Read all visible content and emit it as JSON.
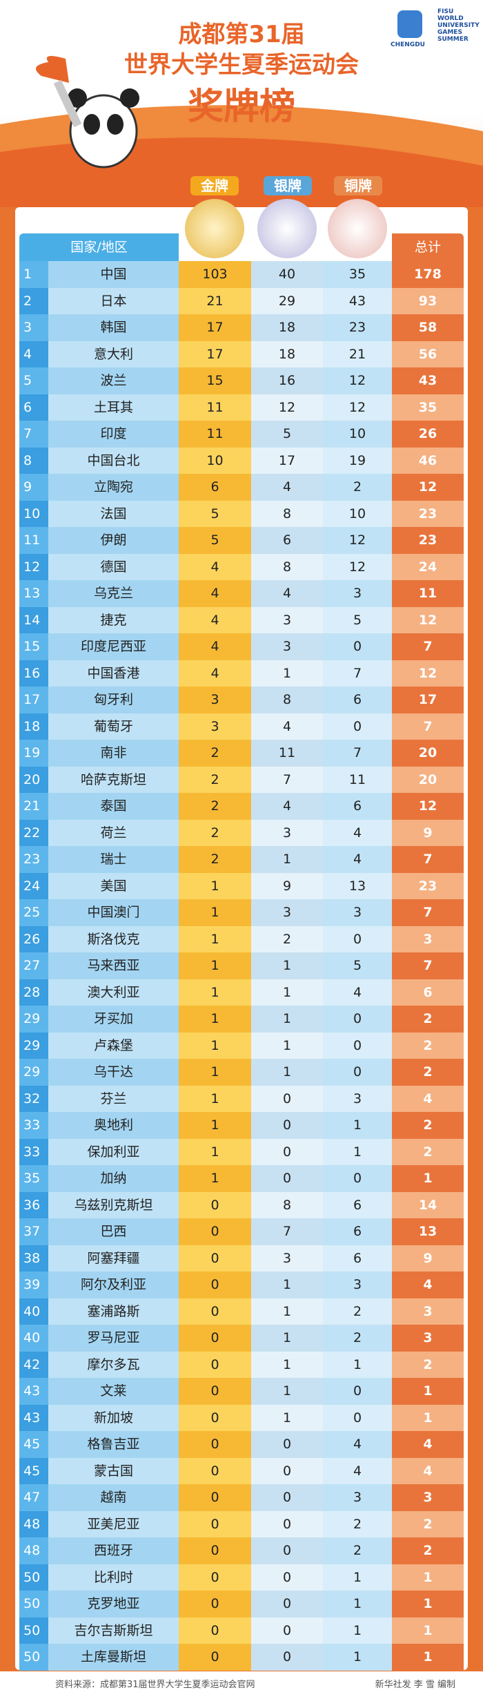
{
  "header": {
    "title_line1": "成都第31届",
    "title_line2": "世界大学生夏季运动会",
    "title_line3": "奖牌榜",
    "logo_left": "CHENGDU",
    "logo_right": [
      "FISU",
      "WORLD",
      "UNIVERSITY",
      "GAMES",
      "SUMMER"
    ]
  },
  "medals": {
    "gold": "金牌",
    "silver": "银牌",
    "bronze": "铜牌"
  },
  "table": {
    "columns": {
      "country": "国家/地区",
      "total": "总计"
    },
    "rows": [
      [
        1,
        "中国",
        103,
        40,
        35,
        178
      ],
      [
        2,
        "日本",
        21,
        29,
        43,
        93
      ],
      [
        3,
        "韩国",
        17,
        18,
        23,
        58
      ],
      [
        4,
        "意大利",
        17,
        18,
        21,
        56
      ],
      [
        5,
        "波兰",
        15,
        16,
        12,
        43
      ],
      [
        6,
        "土耳其",
        11,
        12,
        12,
        35
      ],
      [
        7,
        "印度",
        11,
        5,
        10,
        26
      ],
      [
        8,
        "中国台北",
        10,
        17,
        19,
        46
      ],
      [
        9,
        "立陶宛",
        6,
        4,
        2,
        12
      ],
      [
        10,
        "法国",
        5,
        8,
        10,
        23
      ],
      [
        11,
        "伊朗",
        5,
        6,
        12,
        23
      ],
      [
        12,
        "德国",
        4,
        8,
        12,
        24
      ],
      [
        13,
        "乌克兰",
        4,
        4,
        3,
        11
      ],
      [
        14,
        "捷克",
        4,
        3,
        5,
        12
      ],
      [
        15,
        "印度尼西亚",
        4,
        3,
        0,
        7
      ],
      [
        16,
        "中国香港",
        4,
        1,
        7,
        12
      ],
      [
        17,
        "匈牙利",
        3,
        8,
        6,
        17
      ],
      [
        18,
        "葡萄牙",
        3,
        4,
        0,
        7
      ],
      [
        19,
        "南非",
        2,
        11,
        7,
        20
      ],
      [
        20,
        "哈萨克斯坦",
        2,
        7,
        11,
        20
      ],
      [
        21,
        "泰国",
        2,
        4,
        6,
        12
      ],
      [
        22,
        "荷兰",
        2,
        3,
        4,
        9
      ],
      [
        23,
        "瑞士",
        2,
        1,
        4,
        7
      ],
      [
        24,
        "美国",
        1,
        9,
        13,
        23
      ],
      [
        25,
        "中国澳门",
        1,
        3,
        3,
        7
      ],
      [
        26,
        "斯洛伐克",
        1,
        2,
        0,
        3
      ],
      [
        27,
        "马来西亚",
        1,
        1,
        5,
        7
      ],
      [
        28,
        "澳大利亚",
        1,
        1,
        4,
        6
      ],
      [
        29,
        "牙买加",
        1,
        1,
        0,
        2
      ],
      [
        29,
        "卢森堡",
        1,
        1,
        0,
        2
      ],
      [
        29,
        "乌干达",
        1,
        1,
        0,
        2
      ],
      [
        32,
        "芬兰",
        1,
        0,
        3,
        4
      ],
      [
        33,
        "奥地利",
        1,
        0,
        1,
        2
      ],
      [
        33,
        "保加利亚",
        1,
        0,
        1,
        2
      ],
      [
        35,
        "加纳",
        1,
        0,
        0,
        1
      ],
      [
        36,
        "乌兹别克斯坦",
        0,
        8,
        6,
        14
      ],
      [
        37,
        "巴西",
        0,
        7,
        6,
        13
      ],
      [
        38,
        "阿塞拜疆",
        0,
        3,
        6,
        9
      ],
      [
        39,
        "阿尔及利亚",
        0,
        1,
        3,
        4
      ],
      [
        40,
        "塞浦路斯",
        0,
        1,
        2,
        3
      ],
      [
        40,
        "罗马尼亚",
        0,
        1,
        2,
        3
      ],
      [
        42,
        "摩尔多瓦",
        0,
        1,
        1,
        2
      ],
      [
        43,
        "文莱",
        0,
        1,
        0,
        1
      ],
      [
        43,
        "新加坡",
        0,
        1,
        0,
        1
      ],
      [
        45,
        "格鲁吉亚",
        0,
        0,
        4,
        4
      ],
      [
        45,
        "蒙古国",
        0,
        0,
        4,
        4
      ],
      [
        47,
        "越南",
        0,
        0,
        3,
        3
      ],
      [
        48,
        "亚美尼亚",
        0,
        0,
        2,
        2
      ],
      [
        48,
        "西班牙",
        0,
        0,
        2,
        2
      ],
      [
        50,
        "比利时",
        0,
        0,
        1,
        1
      ],
      [
        50,
        "克罗地亚",
        0,
        0,
        1,
        1
      ],
      [
        50,
        "吉尔吉斯斯坦",
        0,
        0,
        1,
        1
      ],
      [
        50,
        "土库曼斯坦",
        0,
        0,
        1,
        1
      ]
    ]
  },
  "footer": {
    "source": "资料来源：成都第31届世界大学生夏季运动会官网",
    "credit": "新华社发 李 雪 编制"
  }
}
